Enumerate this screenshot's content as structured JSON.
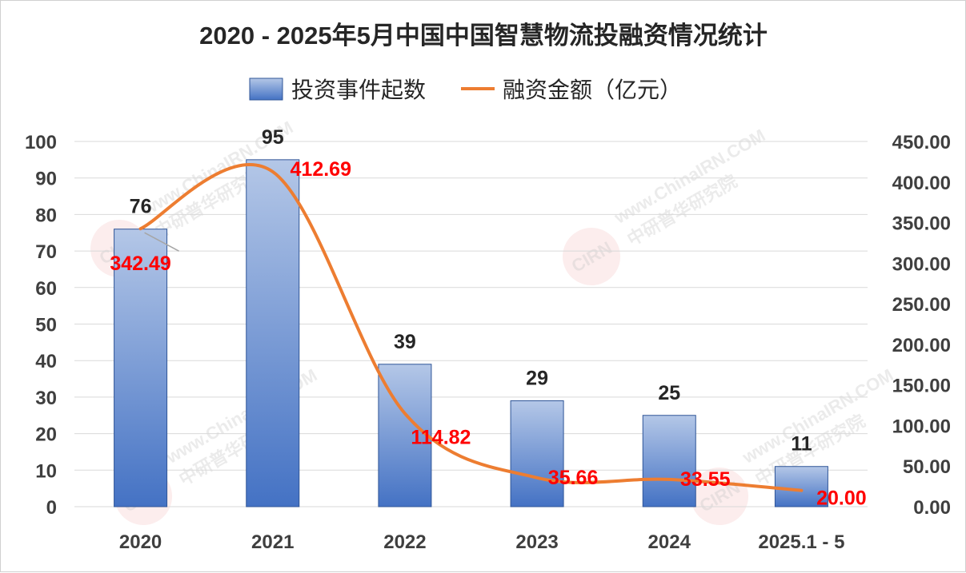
{
  "chart_data": {
    "type": "bar",
    "title": "2020 - 2025年5月中国中国智慧物流投融资情况统计",
    "categories": [
      "2020",
      "2021",
      "2022",
      "2023",
      "2024",
      "2025.1 - 5"
    ],
    "series": [
      {
        "name": "投资事件起数",
        "type": "bar",
        "axis": "left",
        "values": [
          76,
          95,
          39,
          29,
          25,
          11
        ],
        "labels": [
          "76",
          "95",
          "39",
          "29",
          "25",
          "11"
        ]
      },
      {
        "name": "融资金额（亿元）",
        "type": "line",
        "axis": "right",
        "values": [
          342.49,
          412.69,
          114.82,
          35.66,
          33.55,
          20.0
        ],
        "labels": [
          "342.49",
          "412.69",
          "114.82",
          "35.66",
          "33.55",
          "20.00"
        ]
      }
    ],
    "y_left": {
      "min": 0,
      "max": 100,
      "ticks": [
        "0",
        "10",
        "20",
        "30",
        "40",
        "50",
        "60",
        "70",
        "80",
        "90",
        "100"
      ]
    },
    "y_right": {
      "min": 0,
      "max": 450,
      "ticks": [
        "0.00",
        "50.00",
        "100.00",
        "150.00",
        "200.00",
        "250.00",
        "300.00",
        "350.00",
        "400.00",
        "450.00"
      ]
    },
    "grid": true,
    "legend_position": "top",
    "colors": {
      "bar_top": "#b4c7e7",
      "bar_bottom": "#4472c4",
      "bar_stroke": "#2f5597",
      "line": "#ed7d31",
      "line_label": "#ff0000",
      "grid": "#d9d9d9"
    }
  },
  "watermark": {
    "logo": "CIRN",
    "text_cn": "中研普华研究院",
    "text_en": "www.ChinaIRN.COM"
  }
}
